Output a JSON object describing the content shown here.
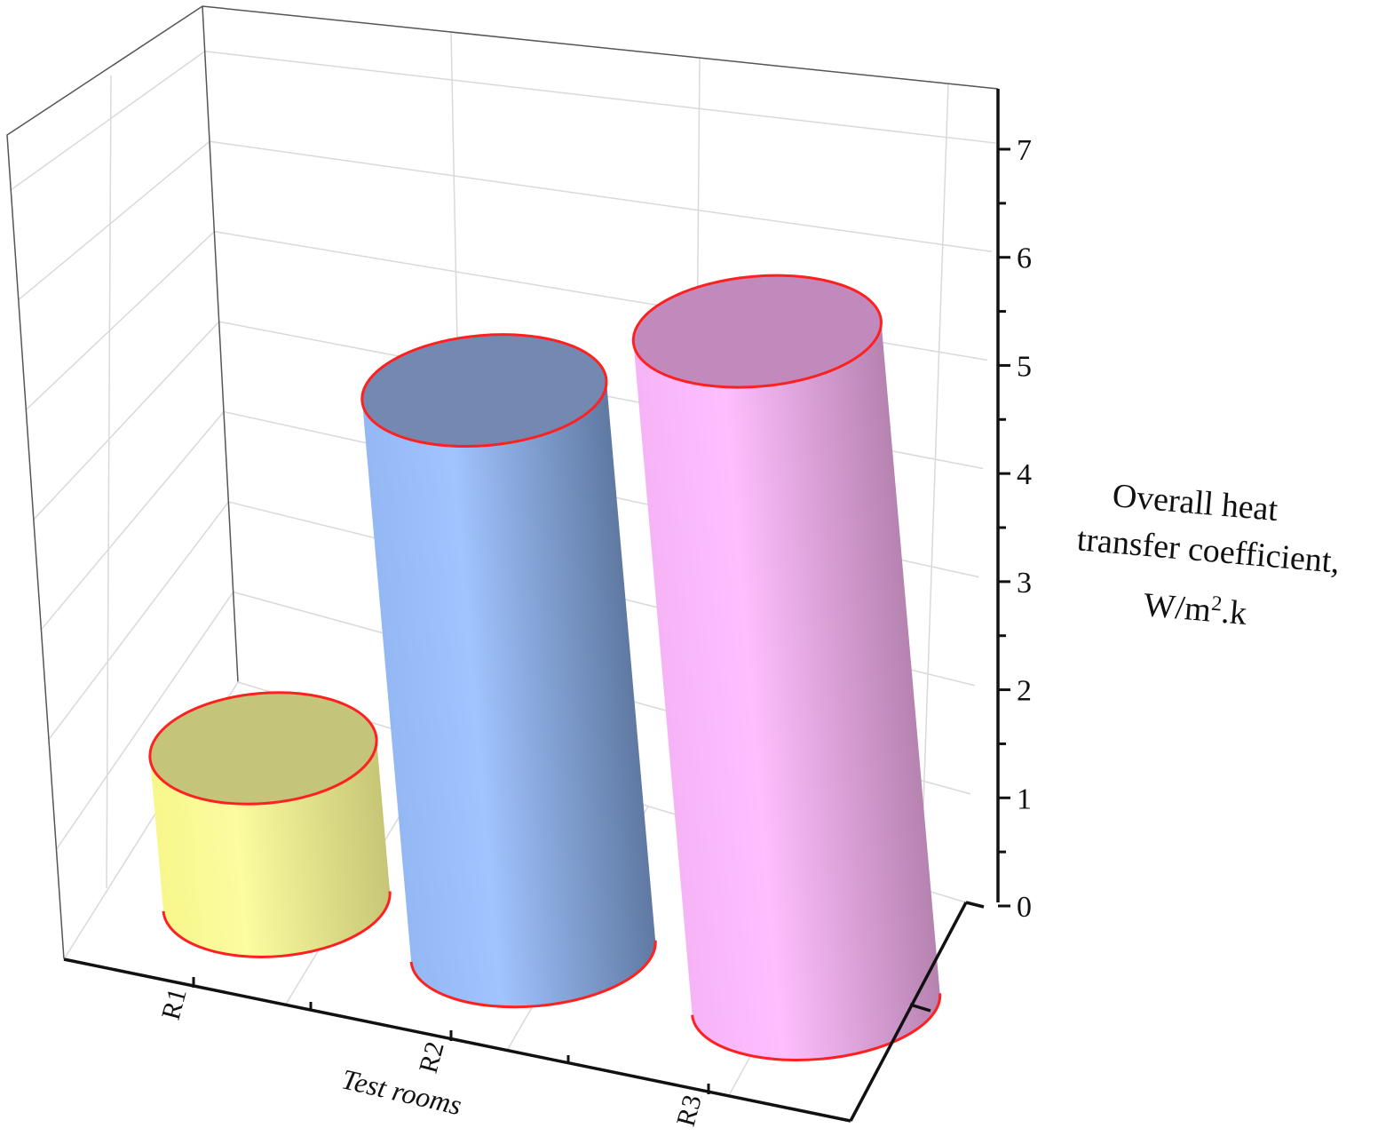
{
  "chart_data": {
    "type": "bar",
    "style": "3d-cylinder",
    "categories": [
      "R1",
      "R2",
      "R3"
    ],
    "values": [
      1.5,
      5.5,
      6.6
    ],
    "colors": [
      "#fcfc96",
      "#9ec4ff",
      "#ffbcff"
    ],
    "top_colors": [
      "#c4c47a",
      "#7489b2",
      "#c289bd"
    ],
    "outline_color": "#ff2020",
    "xlabel": "Test rooms",
    "ylabel_lines": [
      "Overall heat",
      "transfer coefficient,",
      "W/m",
      "2",
      ".k"
    ],
    "ylim": [
      0,
      7.5
    ],
    "yticks": [
      0,
      1,
      2,
      3,
      4,
      5,
      6,
      7
    ],
    "grid": true,
    "legend": "none"
  }
}
